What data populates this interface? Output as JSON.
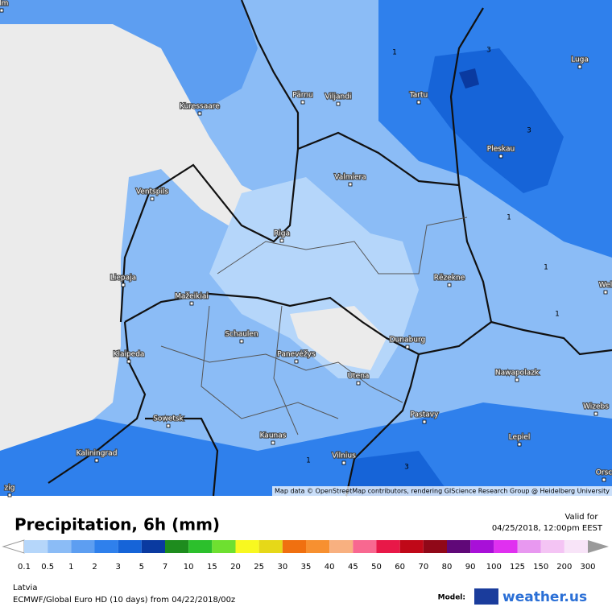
{
  "map": {
    "cities": [
      "olm",
      "Kuressaare",
      "Pärnu",
      "Viljandi",
      "Tartu",
      "Luga",
      "Pleskau",
      "Ventspils",
      "Valmiera",
      "Riga",
      "Liepaja",
      "Rēzekne",
      "Mažeikiai",
      "Schaulen",
      "Panevėžys",
      "Klaipeda",
      "Dunaburg",
      "Utena",
      "Nawapolazk",
      "Wizebs",
      "Sowetsk",
      "Pastavy",
      "Kaunas",
      "Lepiel",
      "Kaliningrad",
      "Vilnius",
      "Orsc",
      "Wel",
      "zig"
    ],
    "contour_labels": [
      "1",
      "3",
      "3",
      "1",
      "1",
      "1",
      "1",
      "3"
    ],
    "attribution": "Map data © OpenStreetMap contributors, rendering GIScience Research Group @ Heidelberg University"
  },
  "header": {
    "title": "Precipitation, 6h (mm)",
    "valid_label": "Valid for",
    "valid_time": "04/25/2018, 12:00pm EEST"
  },
  "legend": {
    "values": [
      0.1,
      0.5,
      1,
      2,
      3,
      5,
      7,
      10,
      15,
      20,
      25,
      30,
      35,
      40,
      45,
      50,
      60,
      70,
      80,
      90,
      100,
      125,
      150,
      200,
      300
    ],
    "colors": [
      "#b5d6fa",
      "#8bbcf6",
      "#5d9ef1",
      "#2f80ec",
      "#1664d8",
      "#0a3aa0",
      "#1e8c1e",
      "#2cc02c",
      "#6ee030",
      "#f8f820",
      "#e6d818",
      "#f07010",
      "#f79030",
      "#f8b080",
      "#f86890",
      "#e81848",
      "#c00818",
      "#900818",
      "#600878",
      "#a810d8",
      "#e030f0",
      "#e898f0",
      "#f4c4f4",
      "#f8e4f8"
    ]
  },
  "footer": {
    "region": "Latvia",
    "model_run": "ECMWF/Global Euro HD (10 days) from 04/22/2018/00z",
    "model_label": "Model:",
    "brand": "weather.us"
  }
}
